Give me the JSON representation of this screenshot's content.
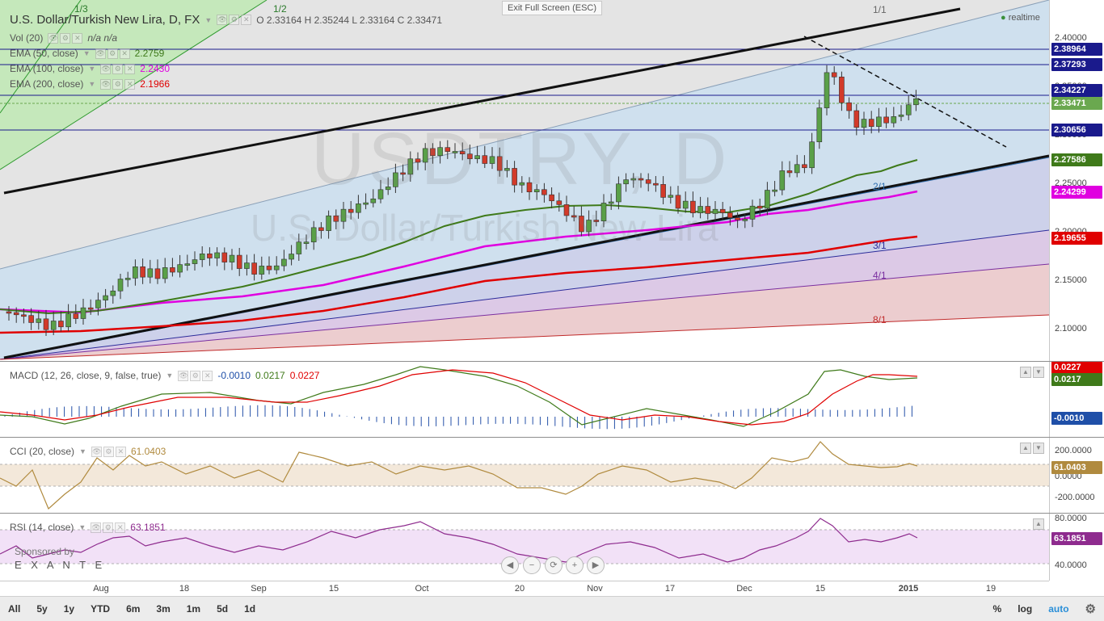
{
  "header": {
    "symbol_title": "U.S. Dollar/Turkish New Lira, D, FX",
    "ohlc": "O 2.33164  H 2.35244  L 2.33164  C 2.33471",
    "exit_fullscreen": "Exit Full Screen (ESC)",
    "realtime": "realtime"
  },
  "watermark": {
    "ticker": "USDTRY, D",
    "name": "U.S. Dollar/Turkish New Lira"
  },
  "indicators_main": [
    {
      "label": "Vol (20)",
      "value": "n/a  n/a",
      "color": "#555555"
    },
    {
      "label": "EMA (50, close)",
      "value": "2.2759",
      "color": "#3f7a1a"
    },
    {
      "label": "EMA (100, close)",
      "value": "2.2430",
      "color": "#e000e0"
    },
    {
      "label": "EMA (200, close)",
      "value": "2.1966",
      "color": "#e00000"
    }
  ],
  "price_scale": {
    "ticks": [
      "2.40000",
      "2.35000",
      "2.30000",
      "2.25000",
      "2.20000",
      "2.15000",
      "2.10000"
    ],
    "labels": [
      {
        "text": "2.38964",
        "color": "#1a1a8c"
      },
      {
        "text": "2.37293",
        "color": "#1a1a8c"
      },
      {
        "text": "2.34227",
        "color": "#1a1a8c"
      },
      {
        "text": "2.33471",
        "color": "#6aa84f"
      },
      {
        "text": "2.30656",
        "color": "#1a1a8c"
      },
      {
        "text": "2.27586",
        "color": "#3f7a1a"
      },
      {
        "text": "2.24299",
        "color": "#e000e0"
      },
      {
        "text": "2.19655",
        "color": "#e00000"
      }
    ]
  },
  "gann_labels": [
    "1/3",
    "1/2",
    "1/1",
    "2/1",
    "3/1",
    "4/1",
    "8/1"
  ],
  "macd": {
    "label": "MACD (12, 26, close, 9, false, true)",
    "values": [
      "-0.0010",
      "0.0217",
      "0.0227"
    ],
    "scale_labels": [
      {
        "text": "0.0227",
        "color": "#e00000"
      },
      {
        "text": "0.0217",
        "color": "#3f7a1a"
      },
      {
        "text": "-0.0010",
        "color": "#1f4fa8"
      }
    ]
  },
  "cci": {
    "label": "CCI (20, close)",
    "value": "61.0403",
    "ticks": [
      "200.0000",
      "0.0000",
      "-200.0000"
    ],
    "current": "61.0403"
  },
  "rsi": {
    "label": "RSI (14, close)",
    "value": "63.1851",
    "ticks": [
      "80.0000",
      "40.0000"
    ],
    "current": "63.1851"
  },
  "sponsor": {
    "line1": "Sponsored by",
    "line2": "E X A N T E"
  },
  "date_axis": [
    "Aug",
    "18",
    "Sep",
    "15",
    "Oct",
    "20",
    "Nov",
    "17",
    "Dec",
    "15",
    "2015",
    "19"
  ],
  "timeframes": [
    "All",
    "5y",
    "1y",
    "YTD",
    "6m",
    "3m",
    "1m",
    "5d",
    "1d"
  ],
  "bottom_right": {
    "percent": "%",
    "log": "log",
    "auto": "auto"
  }
}
